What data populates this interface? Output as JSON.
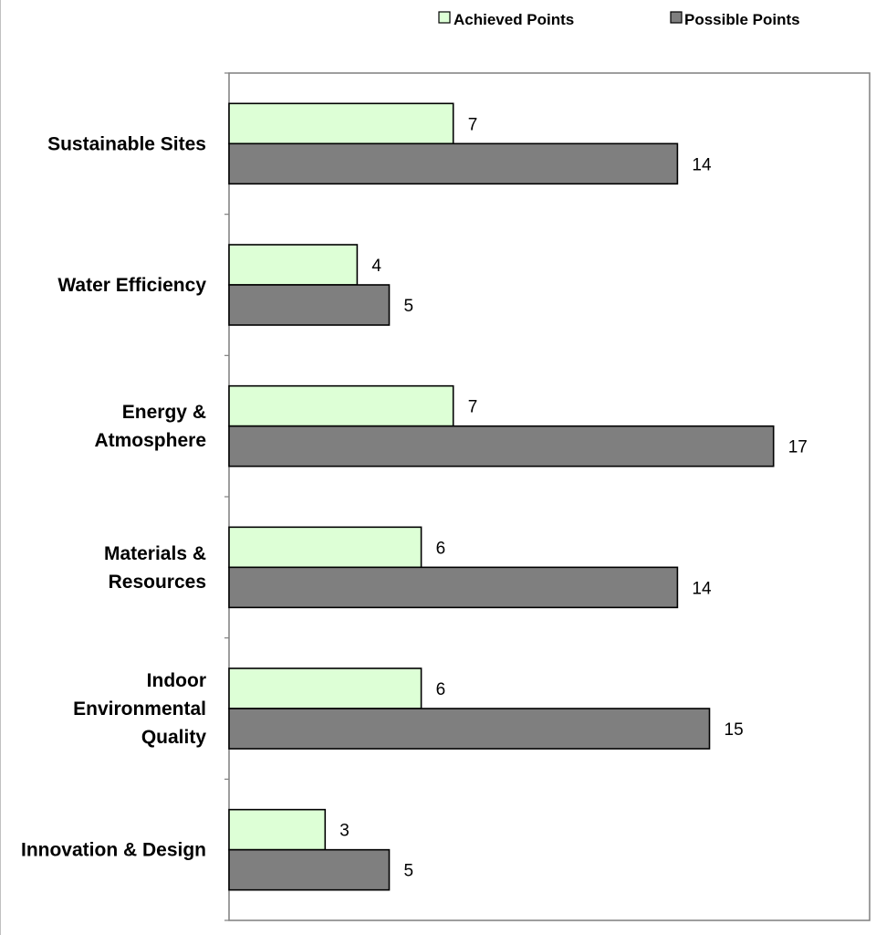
{
  "chart_data": {
    "type": "bar",
    "orientation": "horizontal",
    "categories": [
      [
        "Sustainable Sites"
      ],
      [
        "Water Efficiency"
      ],
      [
        "Energy &",
        "Atmosphere"
      ],
      [
        "Materials &",
        "Resources"
      ],
      [
        "Indoor",
        "Environmental",
        "Quality"
      ],
      [
        "Innovation & Design"
      ]
    ],
    "series": [
      {
        "name": "Achieved Points",
        "values": [
          7,
          4,
          7,
          6,
          6,
          3
        ],
        "color": "#ddffd6"
      },
      {
        "name": "Possible Points",
        "values": [
          14,
          5,
          17,
          14,
          15,
          5
        ],
        "color": "#7f7f7f"
      }
    ],
    "xlim": [
      0,
      20
    ],
    "grid": false,
    "legend_position": "top-right",
    "data_labels": true
  }
}
